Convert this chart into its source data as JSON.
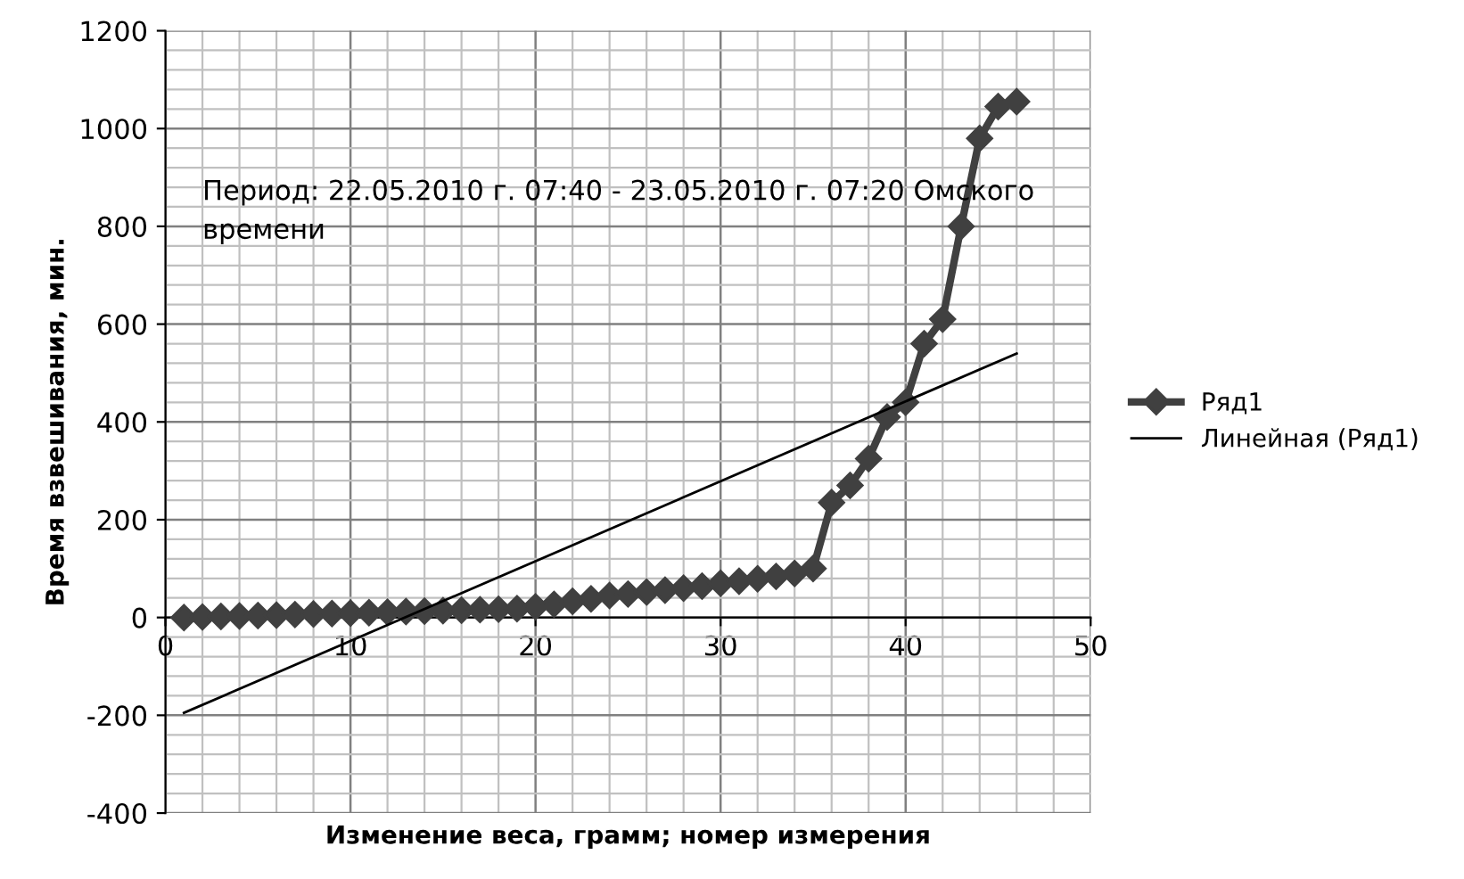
{
  "chart_data": {
    "type": "line",
    "xlabel": "Изменение веса, грамм; номер измерения",
    "ylabel": "Время взвешивания, мин.",
    "annotations": [
      "Период: 22.05.2010 г. 07:40 - 23.05.2010 г. 07:20 Омского\nвремени"
    ],
    "x": [
      1,
      2,
      3,
      4,
      5,
      6,
      7,
      8,
      9,
      10,
      11,
      12,
      13,
      14,
      15,
      16,
      17,
      18,
      19,
      20,
      21,
      22,
      23,
      24,
      25,
      26,
      27,
      28,
      29,
      30,
      31,
      32,
      33,
      34,
      35,
      36,
      37,
      38,
      39,
      40,
      41,
      42,
      43,
      44,
      45,
      46
    ],
    "series": [
      {
        "name": "Ряд1",
        "color": "#404040",
        "marker": "diamond",
        "values": [
          0,
          1,
          2,
          3,
          4,
          5,
          6,
          7,
          8,
          9,
          10,
          11,
          12,
          13,
          14,
          15,
          16,
          17,
          18,
          22,
          27,
          33,
          38,
          45,
          48,
          52,
          56,
          60,
          64,
          70,
          74,
          79,
          84,
          90,
          100,
          235,
          270,
          325,
          410,
          440,
          560,
          610,
          800,
          980,
          1045,
          1055
        ]
      },
      {
        "name": "Линейная (Ряд1)",
        "color": "#000000",
        "marker": "none",
        "x": [
          1,
          46
        ],
        "values": [
          -195,
          540
        ]
      }
    ],
    "xlim": [
      0,
      50
    ],
    "xticks": [
      0,
      10,
      20,
      30,
      40,
      50
    ],
    "ylim": [
      -400,
      1200
    ],
    "yticks": [
      -400,
      -200,
      0,
      200,
      400,
      600,
      800,
      1000,
      1200
    ],
    "grid": true,
    "legend": "right",
    "line_style": "solid"
  }
}
